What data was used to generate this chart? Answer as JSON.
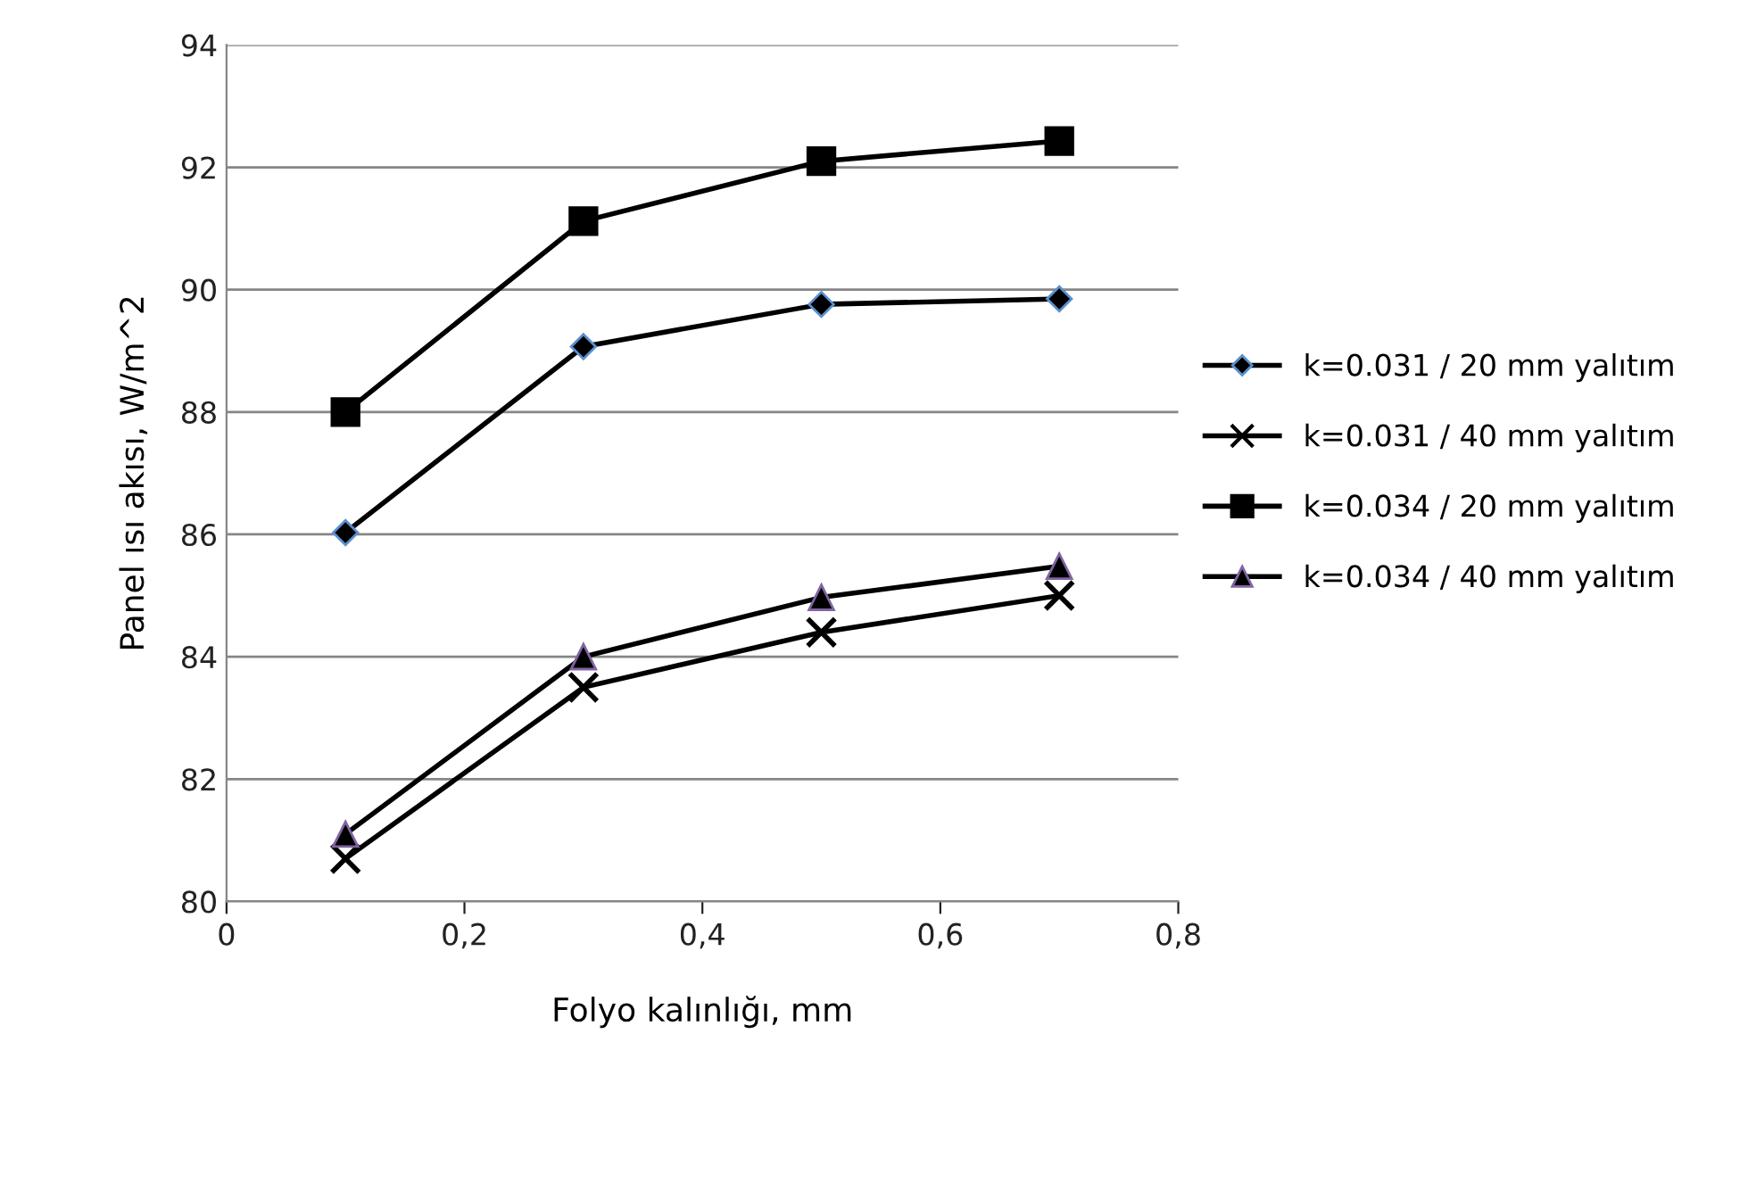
{
  "chart_data": {
    "type": "line",
    "xlabel": "Folyo kalınlığı, mm",
    "ylabel": "Panel ısı akısı, W/m^2",
    "x": [
      0.1,
      0.3,
      0.5,
      0.7
    ],
    "series": [
      {
        "name": "k=0.031 / 20 mm yalıtım",
        "color": "#000000",
        "marker": "diamond",
        "values": [
          86.03,
          89.07,
          89.76,
          89.85
        ]
      },
      {
        "name": "k=0.031 / 40 mm yalıtım",
        "color": "#000000",
        "marker": "cross",
        "values": [
          80.7,
          83.5,
          84.4,
          85.0
        ]
      },
      {
        "name": "k=0.034 / 20 mm yalıtım",
        "color": "#000000",
        "marker": "square",
        "values": [
          88.0,
          91.12,
          92.1,
          92.43
        ]
      },
      {
        "name": "k=0.034 / 40 mm yalıtım",
        "color": "#000000",
        "marker": "triangle",
        "values": [
          81.1,
          84.0,
          84.97,
          85.48
        ]
      }
    ],
    "xlim": [
      0,
      0.8
    ],
    "xticks": [
      0,
      {
        "value": 0.2,
        "label": "0,2"
      },
      {
        "value": 0.4,
        "label": "0,4"
      },
      {
        "value": 0.6,
        "label": "0,6"
      },
      {
        "value": 0.8,
        "label": "0,8"
      }
    ],
    "ylim": [
      80,
      94
    ],
    "yticks": [
      80,
      82,
      84,
      86,
      88,
      90,
      92,
      94
    ],
    "grid": "y",
    "legend": "right",
    "line_style": "solid"
  }
}
